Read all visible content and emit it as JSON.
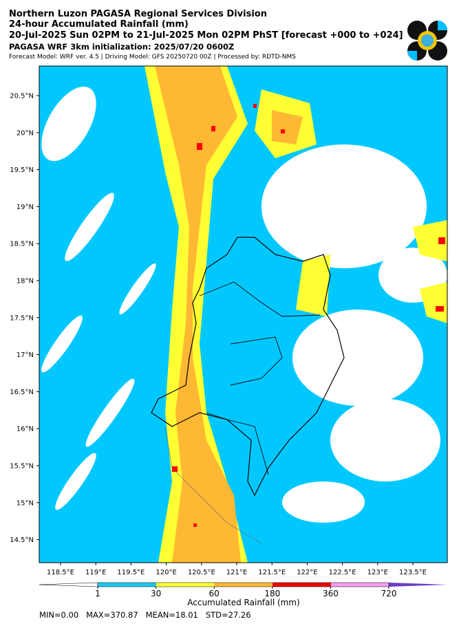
{
  "header": {
    "title": "Northern Luzon PAGASA Regional Services Division",
    "subtitle": "24-hour Accumulated Rainfall (mm)",
    "period": "20-Jul-2025 Sun 02PM to 21-Jul-2025 Mon 02PM PhST [forecast +000 to +024]",
    "init": "PAGASA WRF 3km initialization: 2025/07/20 0600Z",
    "model": "Forecast Model: WRF ver. 4.5 | Driving Model: GFS 20250720 00Z | Processed by: RDTD-NMS"
  },
  "map": {
    "lat_labels": [
      "20.5°N",
      "20°N",
      "19.5°N",
      "19°N",
      "18.5°N",
      "18°N",
      "17.5°N",
      "17°N",
      "16.5°N",
      "16°N",
      "15.5°N",
      "15°N",
      "14.5°N"
    ],
    "lon_labels": [
      "118.5°E",
      "119°E",
      "119.5°E",
      "120°E",
      "120.5°E",
      "121°E",
      "121.5°E",
      "122°E",
      "122.5°E",
      "123°E",
      "123.5°E"
    ]
  },
  "colorbar": {
    "ticks": [
      1,
      30,
      60,
      180,
      360,
      720
    ],
    "label": "Accumulated Rainfall (mm)"
  },
  "stats": "MIN=0.00   MAX=370.87   MEAN=18.01   STD=27.26"
}
